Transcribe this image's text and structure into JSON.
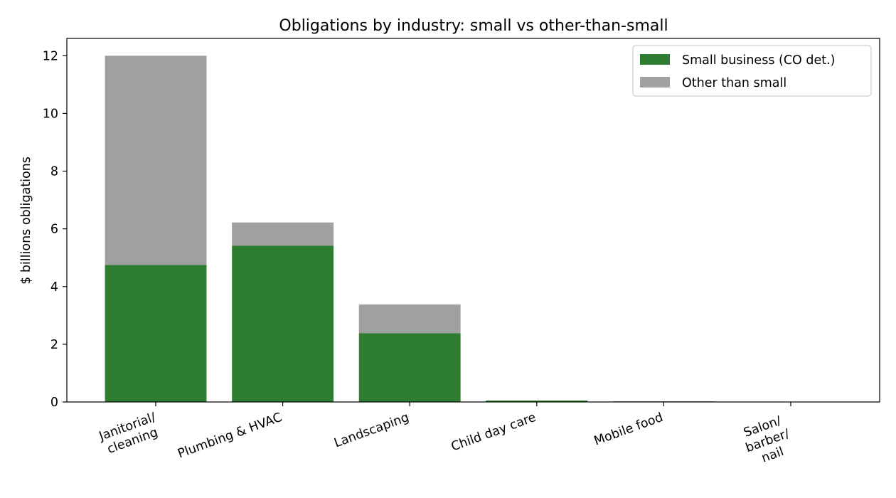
{
  "chart_data": {
    "type": "bar",
    "stacked": true,
    "title": "Obligations by industry: small vs other-than-small",
    "xlabel": "",
    "ylabel": "$ billions obligations",
    "categories": [
      [
        "Janitorial/",
        "cleaning"
      ],
      [
        "Plumbing & HVAC"
      ],
      [
        "Landscaping"
      ],
      [
        "Child day care"
      ],
      [
        "Mobile food"
      ],
      [
        "Salon/",
        "barber/",
        "nail"
      ]
    ],
    "series": [
      {
        "name": "Small business (CO det.)",
        "color": "#2e7d32",
        "values": [
          4.75,
          5.42,
          2.38,
          0.05,
          0.02,
          0.0
        ]
      },
      {
        "name": "Other than small",
        "color": "#a0a0a0",
        "values": [
          7.25,
          0.8,
          1.0,
          0.0,
          0.0,
          0.0
        ]
      }
    ],
    "ylim": [
      0,
      12.6
    ],
    "yticks": [
      0,
      2,
      4,
      6,
      8,
      10,
      12
    ],
    "grid": false,
    "legend_position": "top-right"
  }
}
